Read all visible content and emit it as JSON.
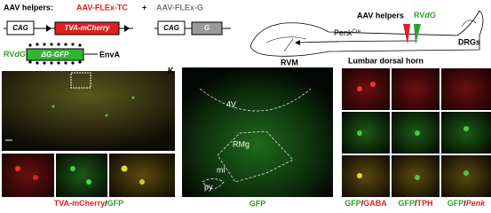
{
  "constructs": {
    "helpers_label": "AAV helpers:",
    "tc_label": "AAV-FLEx-TC",
    "plus": "+",
    "g_label": "AAV-FLEx-G",
    "promoter_1": "CAG",
    "tva_box": "TVA-mCherry",
    "promoter_2": "CAG",
    "g_box": "G",
    "rv_prefix": "RV",
    "rv_suffix": "dG",
    "rv_box": "ΔG-GFP",
    "envelope": "EnvA"
  },
  "schematic": {
    "helpers": "AAV helpers",
    "rv_prefix": "RV",
    "rv_suffix": "dG",
    "penk": "Penk",
    "penk_sup": "Cre",
    "drgs": "DRGs",
    "rvm": "RVM",
    "lumbar": "Lumbar dorsal horn"
  },
  "panel_left": {
    "caption_red": "TVA-mCherry",
    "caption_slash": "/",
    "caption_green": "GFP"
  },
  "panel_k": {
    "letter": "K",
    "label_4v": "4V",
    "label_rmg": "RMg",
    "label_ml": "ml",
    "label_py": "py",
    "caption": "GFP"
  },
  "panel_grid": {
    "captions": [
      {
        "green": "GFP",
        "slash": "/",
        "red": "GABA"
      },
      {
        "green": "GFP",
        "slash": "/",
        "red": "TPH"
      },
      {
        "green": "GFP",
        "slash": "/",
        "red": "Penk"
      }
    ]
  }
}
